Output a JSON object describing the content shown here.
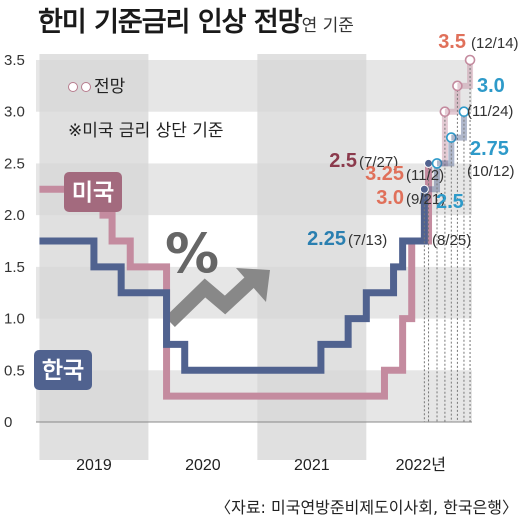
{
  "title": "한미 기준금리 인상 전망",
  "title_suffix": "연 기준",
  "legend": {
    "forecast": "전망",
    "note": "※미국 금리 상단 기준"
  },
  "source": "〈자료: 미국연방준비제도이사회, 한국은행〉",
  "colors": {
    "us": "#c48b9f",
    "us_dark": "#7c3045",
    "kr": "#50628f",
    "kr_label": "#2e9ac9",
    "forecast_label": "#e0705a",
    "grid_band": "#e6e6e6",
    "period_shade": "#d6d6d6"
  },
  "icons": {
    "percent": "percent-icon",
    "trend": "trend-up-arrow-icon"
  },
  "chart_data": {
    "type": "line",
    "title": "한미 기준금리 인상 전망",
    "ylim": [
      0,
      3.5
    ],
    "y_ticks": [
      "0",
      "0.5",
      "1.0",
      "1.5",
      "2.0",
      "2.5",
      "3.0",
      "3.5"
    ],
    "x_labels": [
      "2019",
      "2020",
      "2021",
      "2022년"
    ],
    "series": [
      {
        "name": "미국",
        "points": [
          {
            "x": "2019-01",
            "y": 2.25
          },
          {
            "x": "2019-08",
            "y": 2.0
          },
          {
            "x": "2019-09",
            "y": 1.75
          },
          {
            "x": "2019-11",
            "y": 1.5
          },
          {
            "x": "2020-03",
            "y": 0.25
          },
          {
            "x": "2022-03",
            "y": 0.5
          },
          {
            "x": "2022-05",
            "y": 1.0
          },
          {
            "x": "2022-06",
            "y": 1.75
          },
          {
            "x": "2022-07-27",
            "y": 2.5
          }
        ],
        "forecast": [
          {
            "x": "2022-09-21",
            "y": 3.0
          },
          {
            "x": "2022-11-02",
            "y": 3.25
          },
          {
            "x": "2022-12-14",
            "y": 3.5
          }
        ]
      },
      {
        "name": "한국",
        "points": [
          {
            "x": "2019-01",
            "y": 1.75
          },
          {
            "x": "2019-07",
            "y": 1.5
          },
          {
            "x": "2019-10",
            "y": 1.25
          },
          {
            "x": "2020-03",
            "y": 0.75
          },
          {
            "x": "2020-05",
            "y": 0.5
          },
          {
            "x": "2021-08",
            "y": 0.75
          },
          {
            "x": "2021-11",
            "y": 1.0
          },
          {
            "x": "2022-01",
            "y": 1.25
          },
          {
            "x": "2022-04",
            "y": 1.5
          },
          {
            "x": "2022-05",
            "y": 1.75
          },
          {
            "x": "2022-07-13",
            "y": 2.25
          }
        ],
        "forecast": [
          {
            "x": "2022-08-25",
            "y": 2.5
          },
          {
            "x": "2022-10-12",
            "y": 2.75
          },
          {
            "x": "2022-11-24",
            "y": 3.0
          }
        ]
      }
    ],
    "annotations": [
      {
        "series": "미국",
        "value": "2.5",
        "date": "(7/27)"
      },
      {
        "series": "미국",
        "value": "3.0",
        "date": "(9/21)"
      },
      {
        "series": "미국",
        "value": "3.25",
        "date": "(11/2)"
      },
      {
        "series": "미국",
        "value": "3.5",
        "date": "(12/14)"
      },
      {
        "series": "한국",
        "value": "2.25",
        "date": "(7/13)"
      },
      {
        "series": "한국",
        "value": "2.5",
        "date": "(8/25)"
      },
      {
        "series": "한국",
        "value": "2.75",
        "date": "(10/12)"
      },
      {
        "series": "한국",
        "value": "3.0",
        "date": "(11/24)"
      }
    ],
    "series_labels": {
      "us": "미국",
      "kr": "한국"
    }
  }
}
